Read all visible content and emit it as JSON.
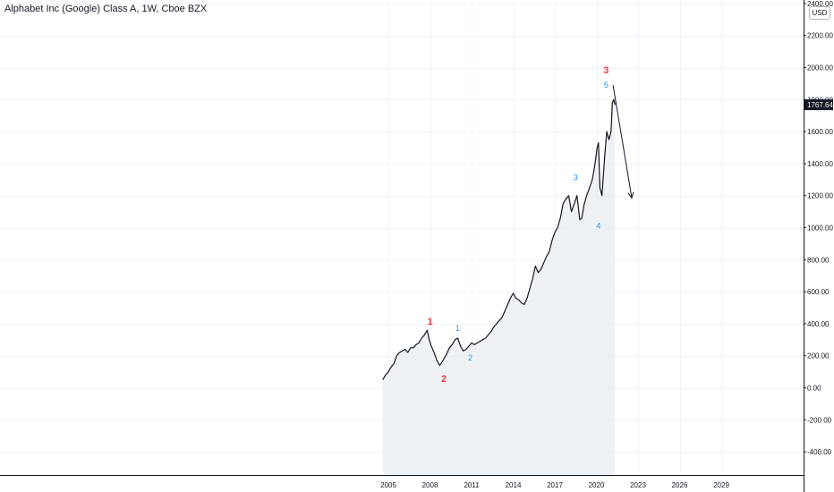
{
  "chart_data": {
    "type": "line",
    "title": "Alphabet Inc (Google) Class A, 1W, Cboe BZX",
    "currency": "USD",
    "x_ticks": [
      "2005",
      "2008",
      "2011",
      "2014",
      "2017",
      "2020",
      "2023",
      "2026",
      "2029"
    ],
    "y_ticks": [
      "-400.00",
      "-200.00",
      "0.00",
      "200.00",
      "400.00",
      "600.00",
      "800.00",
      "1000.00",
      "1200.00",
      "1400.00",
      "1600.00",
      "1800.00",
      "2000.00",
      "2200.00",
      "2400.00"
    ],
    "y_range": [
      -480,
      2400
    ],
    "x_range": [
      2004.9,
      2031.0
    ],
    "last_price": "1767.64",
    "grid": true,
    "series": [
      {
        "x": [
          2004.6,
          2004.8,
          2005.0,
          2005.2,
          2005.4,
          2005.6,
          2005.8,
          2006.0,
          2006.2,
          2006.4,
          2006.6,
          2006.8,
          2007.0,
          2007.2,
          2007.4,
          2007.6,
          2007.8,
          2007.95,
          2008.1,
          2008.3,
          2008.5,
          2008.7,
          2008.85,
          2009.0,
          2009.2,
          2009.4,
          2009.6,
          2009.8,
          2010.0,
          2010.2,
          2010.4,
          2010.6,
          2010.8,
          2011.0,
          2011.2,
          2011.4,
          2011.6,
          2011.8,
          2012.0,
          2012.2,
          2012.4,
          2012.6,
          2012.8,
          2013.0,
          2013.2,
          2013.4,
          2013.6,
          2013.8,
          2014.0,
          2014.2,
          2014.4,
          2014.6,
          2014.8,
          2015.0,
          2015.2,
          2015.4,
          2015.6,
          2015.8,
          2016.0,
          2016.2,
          2016.4,
          2016.6,
          2016.8,
          2017.0,
          2017.2,
          2017.4,
          2017.6,
          2017.8,
          2018.0,
          2018.2,
          2018.4,
          2018.6,
          2018.8,
          2018.95,
          2019.1,
          2019.3,
          2019.5,
          2019.7,
          2019.9,
          2020.05,
          2020.15,
          2020.25,
          2020.4,
          2020.6,
          2020.75,
          2020.9,
          2021.05,
          2021.15,
          2021.25,
          2021.35
        ],
        "y": [
          50,
          80,
          100,
          130,
          150,
          200,
          220,
          230,
          240,
          220,
          250,
          250,
          270,
          280,
          310,
          330,
          360,
          300,
          260,
          220,
          170,
          140,
          160,
          180,
          210,
          250,
          270,
          300,
          310,
          260,
          230,
          240,
          260,
          280,
          270,
          280,
          290,
          300,
          310,
          330,
          350,
          380,
          400,
          420,
          440,
          480,
          520,
          560,
          590,
          560,
          550,
          530,
          520,
          560,
          620,
          680,
          760,
          720,
          740,
          780,
          820,
          850,
          920,
          970,
          1000,
          1060,
          1150,
          1180,
          1200,
          1100,
          1150,
          1200,
          1050,
          1060,
          1140,
          1200,
          1250,
          1300,
          1400,
          1500,
          1530,
          1250,
          1200,
          1450,
          1600,
          1550,
          1600,
          1780,
          1800,
          1767
        ]
      }
    ],
    "wave_labels": [
      {
        "text": "1",
        "x": 2008.0,
        "y": 395,
        "color": "#f23645"
      },
      {
        "text": "2",
        "x": 2009.0,
        "y": 35,
        "color": "#f23645"
      },
      {
        "text": "3",
        "x": 2020.7,
        "y": 1965,
        "color": "#f23645"
      },
      {
        "text": "1",
        "x": 2010.0,
        "y": 355,
        "color": "#2196f3"
      },
      {
        "text": "2",
        "x": 2010.9,
        "y": 170,
        "color": "#2196f3"
      },
      {
        "text": "3",
        "x": 2018.5,
        "y": 1295,
        "color": "#2196f3"
      },
      {
        "text": "4",
        "x": 2020.15,
        "y": 995,
        "color": "#2196f3"
      },
      {
        "text": "5",
        "x": 2020.7,
        "y": 1875,
        "color": "#2196f3"
      }
    ],
    "projection_arrow": {
      "from": {
        "x": 2021.2,
        "y": 1890
      },
      "to": {
        "x": 2022.55,
        "y": 1185
      }
    }
  }
}
